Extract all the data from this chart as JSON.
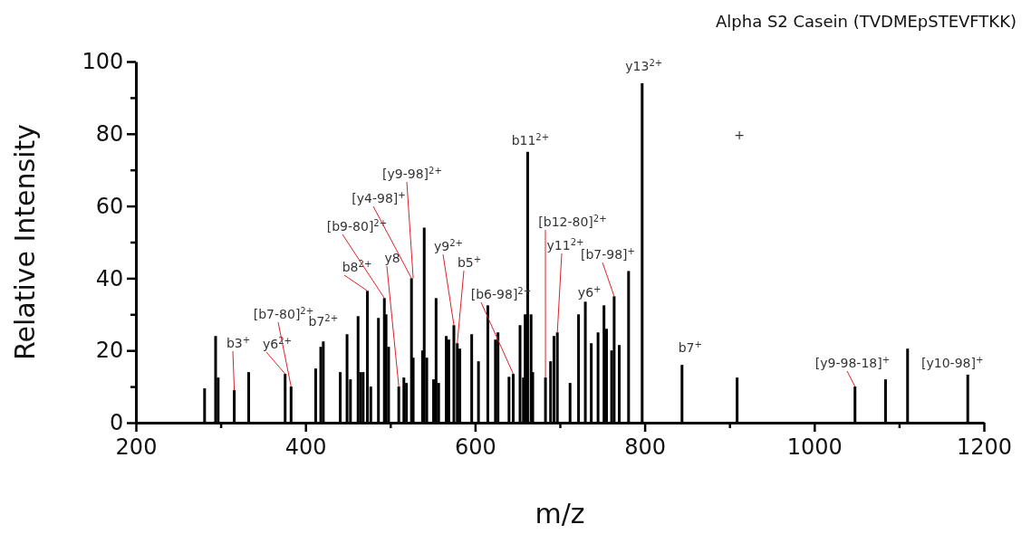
{
  "chart_data": {
    "type": "bar",
    "title": "Alpha S2 Casein (TVDMEpSTEVFTKK)",
    "xlabel": "m/z",
    "ylabel": "Relative Intensity",
    "x": [
      281,
      294,
      297,
      316,
      333,
      376,
      383,
      412,
      418,
      421,
      441,
      449,
      453,
      462,
      465,
      468,
      473,
      477,
      486,
      493,
      495,
      498,
      510,
      516,
      519,
      525,
      527,
      538,
      540,
      543,
      551,
      554,
      557,
      566,
      569,
      575,
      579,
      582,
      596,
      604,
      615,
      624,
      627,
      640,
      645,
      653,
      657,
      659,
      662,
      666,
      668,
      683,
      689,
      693,
      697,
      712,
      722,
      730,
      737,
      745,
      752,
      755,
      761,
      764,
      770,
      781,
      797,
      844,
      909,
      1048,
      1084,
      1110,
      1181
    ],
    "values": [
      9.5,
      24,
      12.5,
      9,
      14,
      13.5,
      10,
      15,
      21,
      22.5,
      14,
      24.5,
      12,
      29.5,
      14,
      14,
      36.5,
      10,
      29,
      34.5,
      30,
      21,
      10,
      12.5,
      11,
      40,
      18,
      20,
      54,
      18,
      12,
      34.5,
      11,
      24,
      23,
      27,
      22,
      20.5,
      24.5,
      17,
      32.5,
      23,
      25,
      12.7,
      13.5,
      27,
      12.5,
      30,
      75,
      30,
      14,
      12.5,
      17,
      24,
      25,
      11,
      30,
      33.5,
      22,
      25,
      32.5,
      26,
      20,
      35,
      21.5,
      42,
      94,
      16,
      12.5,
      10,
      12,
      20.5,
      13.3
    ],
    "color": "#000000",
    "xlim": [
      200,
      1200
    ],
    "xticks": [
      200,
      {
        "value": 300,
        "label": null
      },
      400,
      {
        "value": 500,
        "label": null
      },
      600,
      {
        "value": 700,
        "label": null
      },
      800,
      {
        "value": 900,
        "label": null
      },
      1000,
      {
        "value": 1100,
        "label": null
      },
      1200
    ],
    "ylim": [
      0,
      100
    ],
    "yticks": [
      0,
      {
        "value": 10,
        "label": null
      },
      20,
      {
        "value": 30,
        "label": null
      },
      40,
      {
        "value": 50,
        "label": null
      },
      60,
      {
        "value": 70,
        "label": null
      },
      80,
      {
        "value": 90,
        "label": null
      },
      100
    ],
    "grid": false,
    "annotations": [
      {
        "text": "b3$^{+}$",
        "x": 316,
        "y": 9
      },
      {
        "text": "y6$^{2+}$",
        "x": 376,
        "y": 13.5
      },
      {
        "text": "[b7-80]$^{2+}$",
        "x": 383,
        "y": 10
      },
      {
        "text": "b7$^{2+}$",
        "x": 421,
        "y": 22.5
      },
      {
        "text": "b8$^{2+}$",
        "x": 473,
        "y": 36.5
      },
      {
        "text": "[b9-80]$^{2+}$",
        "x": 493,
        "y": 34.5
      },
      {
        "text": "y8",
        "x": 510,
        "y": 10
      },
      {
        "text": "[y4-98]$^{+}$",
        "x": 525,
        "y": 40
      },
      {
        "text": "[y9-98]$^{2+}$",
        "x": 527,
        "y": 40
      },
      {
        "text": "y9$^{2+}$",
        "x": 575,
        "y": 27
      },
      {
        "text": "b5$^{+}$",
        "x": 579,
        "y": 22
      },
      {
        "text": "[b6-98]$^{2+}$",
        "x": 645,
        "y": 13.5
      },
      {
        "text": "b11$^{2+}$",
        "x": 662,
        "y": 75
      },
      {
        "text": "[b12-80]$^{2+}$",
        "x": 683,
        "y": 12.5
      },
      {
        "text": "y11$^{2+}$",
        "x": 697,
        "y": 25
      },
      {
        "text": "y6$^{+}$",
        "x": 752,
        "y": 32.5
      },
      {
        "text": "[b7-98]$^{+}$",
        "x": 764,
        "y": 35
      },
      {
        "text": "y13$^{2+}$",
        "x": 797,
        "y": 94
      },
      {
        "text": "b7$^{+}$",
        "x": 844,
        "y": 16
      },
      "+",
      {
        "text": "[y9-98-18]$^{+}$",
        "x": 1048,
        "y": 10
      },
      {
        "text": "[y10-98]$^{+}$",
        "x": 1181,
        "y": 13.3
      }
    ]
  }
}
